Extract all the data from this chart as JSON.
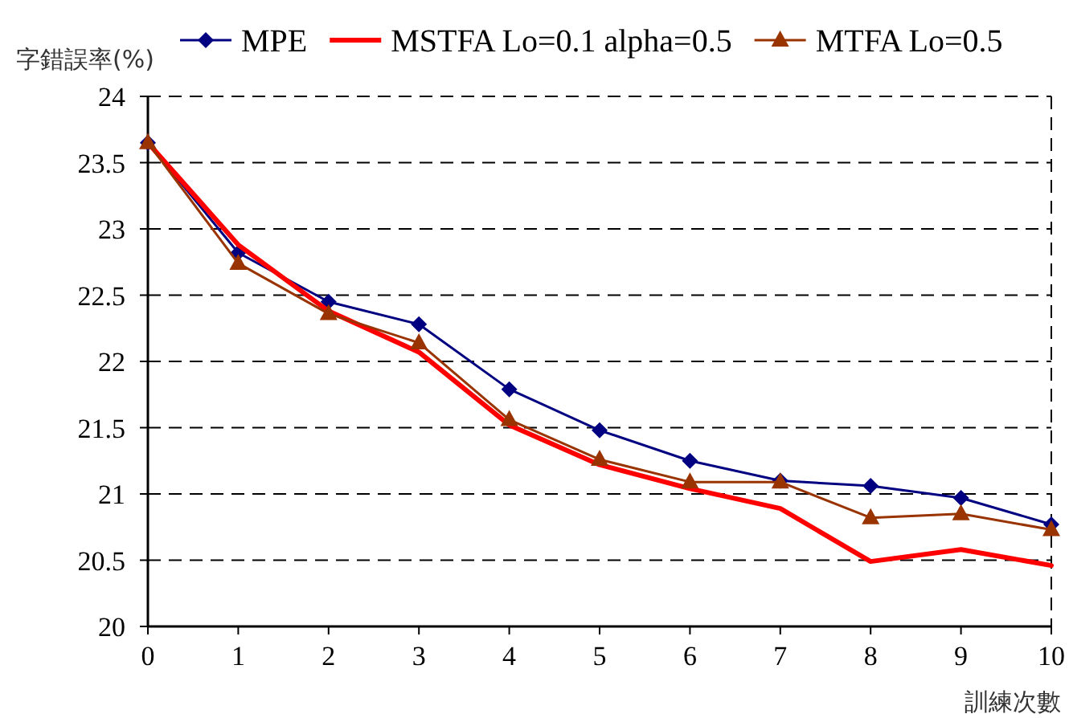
{
  "chart_data": {
    "type": "line",
    "xlabel": "訓練次數",
    "ylabel": "字錯誤率(%)",
    "x": [
      0,
      1,
      2,
      3,
      4,
      5,
      6,
      7,
      8,
      9,
      10
    ],
    "xlim": [
      0,
      10
    ],
    "xticks": [
      0,
      1,
      2,
      3,
      4,
      5,
      6,
      7,
      8,
      9,
      10
    ],
    "ylim": [
      20,
      24
    ],
    "yticks": [
      20,
      20.5,
      21,
      21.5,
      22,
      22.5,
      23,
      23.5,
      24
    ],
    "grid": "y",
    "legend": "top",
    "series": [
      {
        "name": "MPE",
        "color": "#000080",
        "marker": "diamond",
        "values": [
          23.65,
          22.82,
          22.45,
          22.28,
          21.79,
          21.48,
          21.25,
          21.1,
          21.06,
          20.97,
          20.77
        ]
      },
      {
        "name": "MSTFA Lo=0.1 alpha=0.5",
        "color": "#ff0000",
        "marker": "none",
        "values": [
          23.65,
          22.88,
          22.38,
          22.07,
          21.52,
          21.22,
          21.04,
          20.89,
          20.49,
          20.58,
          20.46
        ]
      },
      {
        "name": "MTFA Lo=0.5",
        "color": "#993300",
        "marker": "triangle",
        "values": [
          23.65,
          22.74,
          22.36,
          22.14,
          21.56,
          21.26,
          21.09,
          21.09,
          20.82,
          20.85,
          20.73
        ]
      }
    ]
  }
}
